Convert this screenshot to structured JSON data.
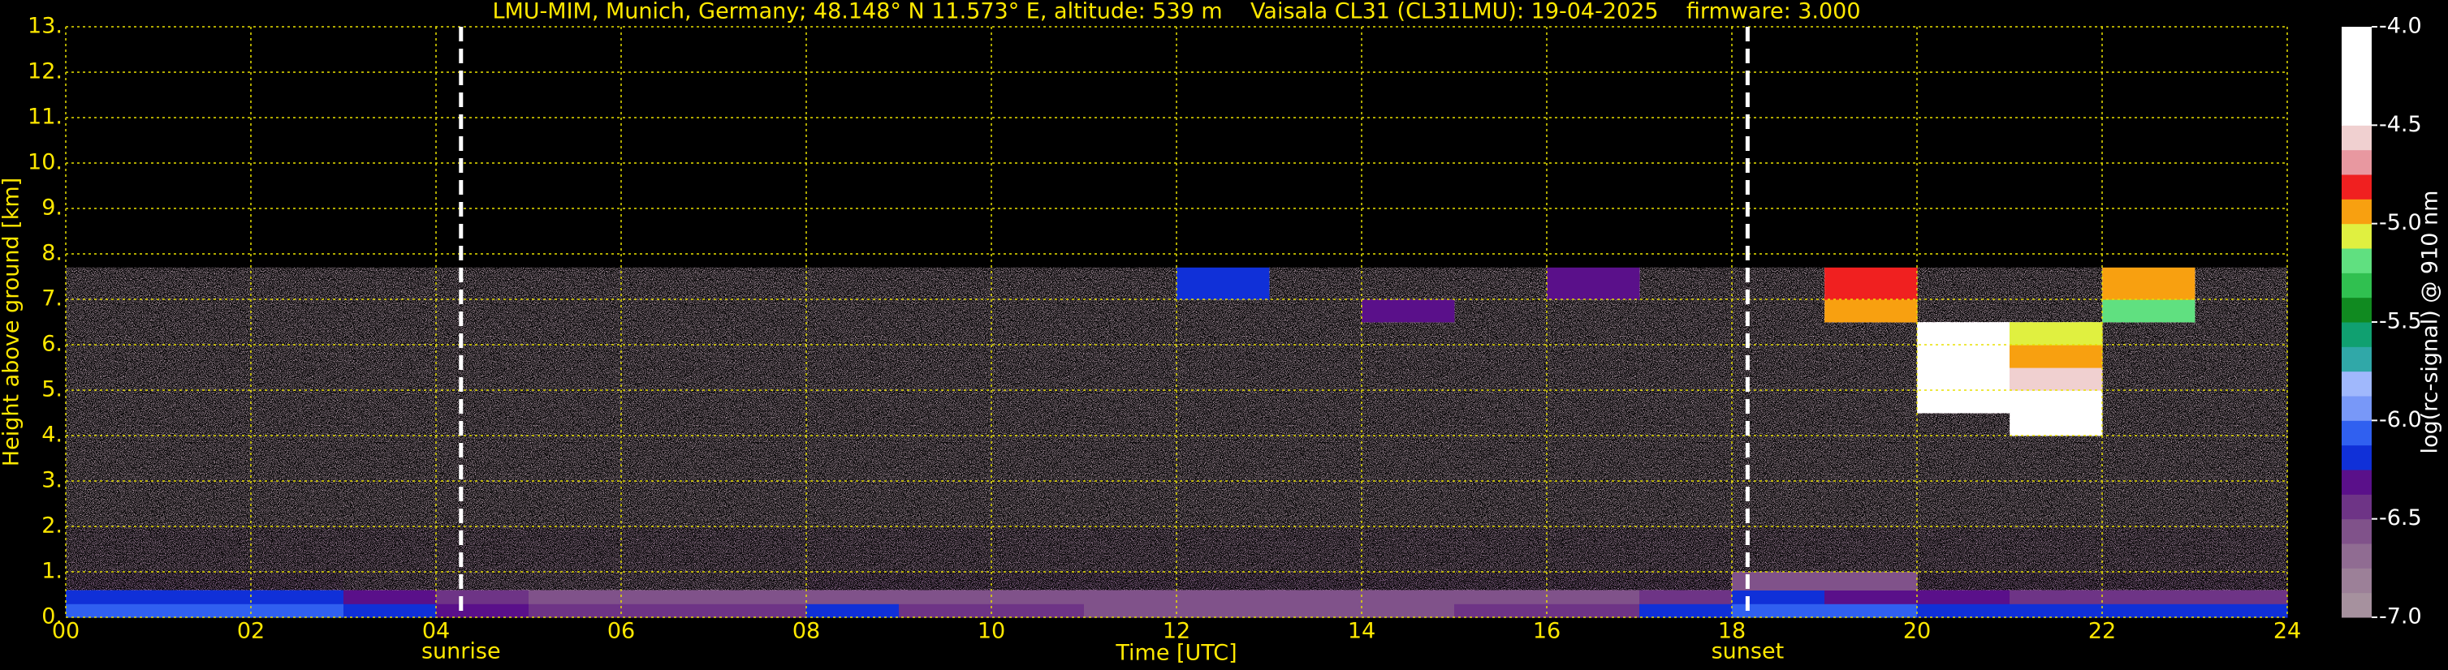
{
  "chart_data": {
    "type": "heatmap",
    "title": "LMU-MIM, Munich, Germany; 48.148° N 11.573° E, altitude: 539 m    Vaisala CL31 (CL31LMU): 19-04-2025    firmware: 3.000",
    "x_label": "Time [UTC]",
    "y_label": "Height above ground [km]",
    "colorbar_label": "log(rc-signal) @ 910 nm",
    "xlim": [
      0,
      24
    ],
    "xticks": [
      {
        "value": 0,
        "label": "00"
      },
      {
        "value": 2,
        "label": "02"
      },
      {
        "value": 4,
        "label": "04"
      },
      {
        "value": 6,
        "label": "06"
      },
      {
        "value": 8,
        "label": "08"
      },
      10,
      12,
      14,
      16,
      18,
      20,
      22,
      24
    ],
    "ylim": [
      0,
      13
    ],
    "yticks": [
      {
        "value": 0,
        "label": "0."
      },
      {
        "value": 1,
        "label": "1."
      },
      {
        "value": 2,
        "label": "2."
      },
      {
        "value": 3,
        "label": "3."
      },
      {
        "value": 4,
        "label": "4."
      },
      {
        "value": 5,
        "label": "5."
      },
      {
        "value": 6,
        "label": "6."
      },
      {
        "value": 7,
        "label": "7."
      },
      {
        "value": 8,
        "label": "8."
      },
      {
        "value": 9,
        "label": "9."
      },
      {
        "value": 10,
        "label": "10."
      },
      {
        "value": 11,
        "label": "11."
      },
      {
        "value": 12,
        "label": "12."
      },
      {
        "value": 13,
        "label": "13."
      }
    ],
    "zlim": [
      -7,
      -4
    ],
    "zticks": [
      {
        "value": -7,
        "label": "-7.0"
      },
      -6.5,
      {
        "value": -6,
        "label": "-6.0"
      },
      -5.5,
      {
        "value": -5,
        "label": "-5.0"
      },
      -4.5,
      {
        "value": -4,
        "label": "-4.0"
      }
    ],
    "colormap": [
      "#a6919e",
      "#9c8098",
      "#906c92",
      "#80528a",
      "#6e3486",
      "#5a108a",
      "#1030d8",
      "#3060f0",
      "#7898f8",
      "#a0b8fc",
      "#30a8a8",
      "#10a070",
      "#108a20",
      "#30c050",
      "#60e080",
      "#e0f040",
      "#f8a010",
      "#f02020",
      "#e898a0",
      "#f0d0d0",
      "#ffffff",
      "#ffffff",
      "#ffffff",
      "#ffffff"
    ],
    "grid": true,
    "grid_color": "#e8e000",
    "text_color": "#ffe800",
    "markers": [
      {
        "x": 4.27,
        "label": "sunrise"
      },
      {
        "x": 18.17,
        "label": "sunset"
      }
    ],
    "x_edges": [
      0,
      1,
      2,
      3,
      4,
      5,
      6,
      7,
      8,
      9,
      10,
      11,
      12,
      13,
      14,
      15,
      16,
      17,
      18,
      19,
      20,
      21,
      22,
      23,
      24
    ],
    "y_edges": [
      0,
      0.3,
      0.6,
      1,
      2,
      3,
      4,
      4.5,
      5,
      5.5,
      6,
      6.5,
      7,
      7.7
    ],
    "z": [
      [
        -6.1,
        -6.1,
        -6.1,
        -6.15,
        -6.3,
        -6.5,
        -6.5,
        -6.4,
        -6.2,
        -6.5,
        -6.5,
        -6.55,
        -6.55,
        -6.55,
        -6.55,
        -6.5,
        -6.4,
        -6.25,
        -6.1,
        -6.1,
        -6.15,
        -6.15,
        -6.2,
        -6.2
      ],
      [
        -6.15,
        -6.15,
        -6.2,
        -6.3,
        -6.5,
        -6.55,
        -6.6,
        -6.6,
        -6.55,
        -6.6,
        -6.6,
        -6.6,
        -6.6,
        -6.6,
        -6.6,
        -6.6,
        -6.55,
        -6.4,
        -6.2,
        -6.3,
        -6.35,
        -6.4,
        -6.4,
        -6.45
      ],
      [
        -6.7,
        -6.7,
        -6.75,
        -6.8,
        -6.8,
        -6.8,
        -6.8,
        -6.8,
        -6.75,
        -6.75,
        -6.75,
        -6.75,
        -6.75,
        -6.75,
        -6.75,
        -6.75,
        -6.75,
        -6.7,
        -6.6,
        -6.6,
        -6.65,
        -6.7,
        -6.7,
        -6.7
      ],
      [
        -6.85,
        -6.85,
        -6.85,
        -6.85,
        -6.85,
        -6.85,
        -6.85,
        -6.85,
        -6.85,
        -6.85,
        -6.85,
        -6.85,
        -6.85,
        -6.85,
        -6.85,
        -6.85,
        -6.85,
        -6.85,
        -6.85,
        -6.85,
        -6.85,
        -6.85,
        -6.85,
        -6.85
      ],
      [
        -6.9,
        -6.9,
        -6.9,
        -6.9,
        -6.9,
        -6.9,
        -6.9,
        -6.9,
        -6.9,
        -6.9,
        -6.9,
        -6.9,
        -6.9,
        -6.9,
        -6.9,
        -6.9,
        -6.9,
        -6.9,
        -6.9,
        -6.9,
        -6.9,
        -6.9,
        -6.9,
        -6.9
      ],
      [
        -6.9,
        -6.9,
        -6.9,
        -6.9,
        -6.9,
        -6.9,
        -6.9,
        -6.9,
        -6.9,
        -6.9,
        -6.9,
        -6.9,
        -6.9,
        -6.9,
        -6.9,
        -6.9,
        -6.9,
        -6.9,
        -6.9,
        -6.9,
        -6.9,
        -6.9,
        -6.9,
        -6.9
      ],
      [
        -6.9,
        -6.9,
        -6.9,
        -6.9,
        -6.9,
        -6.9,
        -6.9,
        -6.9,
        -6.9,
        -6.9,
        -6.9,
        -6.9,
        -6.9,
        -6.9,
        -6.9,
        -6.9,
        -6.9,
        -6.9,
        -6.9,
        -6.9,
        -6.9,
        -4.3,
        -6.9,
        -6.9
      ],
      [
        -6.9,
        -6.9,
        -6.9,
        -6.9,
        -6.9,
        -6.9,
        -6.9,
        -6.9,
        -6.9,
        -6.9,
        -6.9,
        -6.9,
        -6.9,
        -6.9,
        -6.9,
        -6.9,
        -6.9,
        -6.9,
        -6.9,
        -6.9,
        -4.2,
        -4.4,
        -6.9,
        -6.9
      ],
      [
        -6.9,
        -6.9,
        -6.9,
        -6.9,
        -6.9,
        -6.9,
        -6.9,
        -6.9,
        -6.9,
        -6.9,
        -6.9,
        -6.9,
        -6.9,
        -6.9,
        -6.9,
        -6.9,
        -6.9,
        -6.9,
        -6.9,
        -6.9,
        -4.1,
        -4.6,
        -6.9,
        -6.9
      ],
      [
        -6.9,
        -6.9,
        -6.9,
        -6.9,
        -6.9,
        -6.9,
        -6.9,
        -6.9,
        -6.9,
        -6.9,
        -6.9,
        -6.9,
        -6.9,
        -6.9,
        -6.9,
        -6.9,
        -6.9,
        -6.9,
        -6.9,
        -6.9,
        -4.4,
        -5.0,
        -6.9,
        -6.9
      ],
      [
        -6.9,
        -6.9,
        -6.9,
        -6.9,
        -6.9,
        -6.9,
        -6.9,
        -6.9,
        -6.9,
        -6.9,
        -6.9,
        -6.9,
        -6.9,
        -6.9,
        -6.9,
        -6.9,
        -6.9,
        -6.9,
        -6.9,
        -6.9,
        -4.2,
        -5.1,
        -6.9,
        -6.9
      ],
      [
        -6.9,
        -6.9,
        -6.9,
        -6.9,
        -6.9,
        -6.9,
        -6.9,
        -6.9,
        -6.9,
        -6.9,
        -6.9,
        -6.9,
        -6.9,
        -6.9,
        -6.3,
        -6.9,
        -6.9,
        -6.9,
        -6.9,
        -5.0,
        -6.9,
        -6.9,
        -5.2,
        -6.9
      ],
      [
        -6.9,
        -6.9,
        -6.9,
        -6.9,
        -6.9,
        -6.9,
        -6.9,
        -6.9,
        -6.9,
        -6.9,
        -6.9,
        -6.9,
        -6.2,
        -6.9,
        -6.9,
        -6.9,
        -6.3,
        -6.9,
        -6.9,
        -4.8,
        -6.9,
        -6.9,
        -4.9,
        -6.9
      ]
    ]
  }
}
